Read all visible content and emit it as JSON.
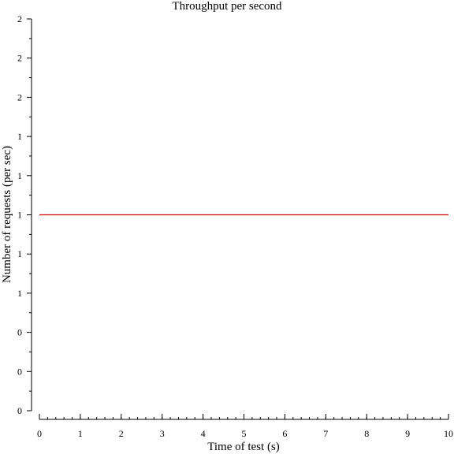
{
  "chart_data": {
    "type": "line",
    "title": "Throughput per second",
    "xlabel": "Time of test (s)",
    "ylabel": "Number of requests (per sec)",
    "xlim": [
      0,
      10
    ],
    "ylim": [
      0,
      2
    ],
    "x_ticks": [
      0,
      1,
      2,
      3,
      4,
      5,
      6,
      7,
      8,
      9,
      10
    ],
    "x_tick_labels": [
      "0",
      "1",
      "2",
      "3",
      "4",
      "5",
      "6",
      "7",
      "8",
      "9",
      "10"
    ],
    "y_tick_labels": [
      "0",
      "0",
      "0",
      "1",
      "1",
      "1",
      "1",
      "1",
      "2",
      "2",
      "2"
    ],
    "series": [
      {
        "x": [
          0,
          10
        ],
        "y": [
          1,
          1
        ],
        "color": "#cc0000"
      }
    ],
    "grid": false,
    "legend": "none"
  }
}
